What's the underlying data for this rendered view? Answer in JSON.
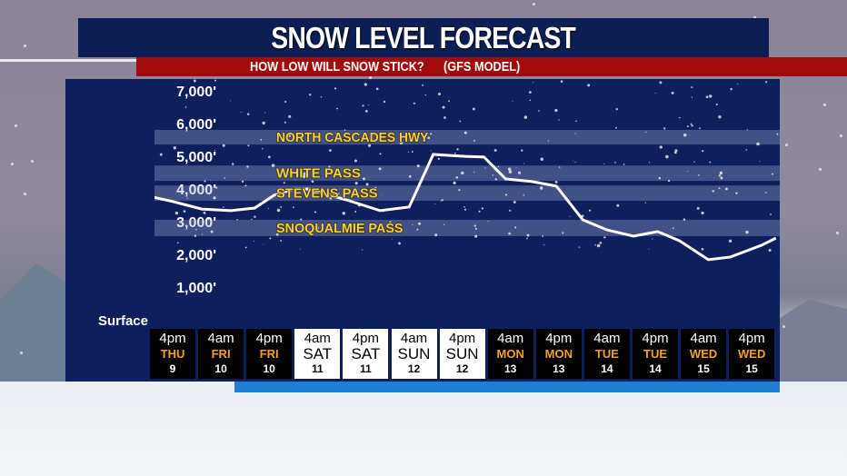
{
  "title": "SNOW LEVEL FORECAST",
  "subtitle": "HOW LOW WILL SNOW STICK?      (GFS MODEL)",
  "colors": {
    "panel": "#0d1f5c",
    "title_bar": "#0c1f55",
    "subtitle_bar": "#a20b0b",
    "band_label": "#f3d14a",
    "weekday_accent": "#f7a21b",
    "line": "#ffffff"
  },
  "chart_data": {
    "type": "line",
    "title": "SNOW LEVEL FORECAST",
    "ylim": [
      0,
      7500
    ],
    "y_ticks": [
      {
        "value": 7000,
        "label": "7,000'"
      },
      {
        "value": 6000,
        "label": "6,000'"
      },
      {
        "value": 5000,
        "label": "5,000'"
      },
      {
        "value": 4000,
        "label": "4,000'"
      },
      {
        "value": 3000,
        "label": "3,000'"
      },
      {
        "value": 2000,
        "label": "2,000'"
      },
      {
        "value": 1000,
        "label": "1,000'"
      },
      {
        "value": 0,
        "label": "Surface"
      }
    ],
    "x_labels": [
      {
        "time": "4pm",
        "day": "THU",
        "date": "9",
        "weekend": false
      },
      {
        "time": "4am",
        "day": "FRI",
        "date": "10",
        "weekend": false
      },
      {
        "time": "4pm",
        "day": "FRI",
        "date": "10",
        "weekend": false
      },
      {
        "time": "4am",
        "day": "SAT",
        "date": "11",
        "weekend": true
      },
      {
        "time": "4pm",
        "day": "SAT",
        "date": "11",
        "weekend": true
      },
      {
        "time": "4am",
        "day": "SUN",
        "date": "12",
        "weekend": true
      },
      {
        "time": "4pm",
        "day": "SUN",
        "date": "12",
        "weekend": true
      },
      {
        "time": "4am",
        "day": "MON",
        "date": "13",
        "weekend": false
      },
      {
        "time": "4pm",
        "day": "MON",
        "date": "13",
        "weekend": false
      },
      {
        "time": "4am",
        "day": "TUE",
        "date": "14",
        "weekend": false
      },
      {
        "time": "4pm",
        "day": "TUE",
        "date": "14",
        "weekend": false
      },
      {
        "time": "4am",
        "day": "WED",
        "date": "15",
        "weekend": false
      },
      {
        "time": "4pm",
        "day": "WED",
        "date": "15",
        "weekend": false
      }
    ],
    "series": [
      {
        "points": [
          [
            -0.4,
            3830
          ],
          [
            0,
            3700
          ],
          [
            0.6,
            3470
          ],
          [
            1.2,
            3420
          ],
          [
            1.7,
            3500
          ],
          [
            2.1,
            3890
          ],
          [
            2.5,
            4080
          ],
          [
            2.85,
            4080
          ],
          [
            3.2,
            3920
          ],
          [
            3.6,
            3750
          ],
          [
            4.3,
            3420
          ],
          [
            4.9,
            3530
          ],
          [
            5.4,
            5140
          ],
          [
            6.05,
            5080
          ],
          [
            6.45,
            5060
          ],
          [
            6.9,
            4390
          ],
          [
            7.45,
            4310
          ],
          [
            7.95,
            4170
          ],
          [
            8.5,
            3140
          ],
          [
            9,
            2830
          ],
          [
            9.55,
            2640
          ],
          [
            10.05,
            2780
          ],
          [
            10.5,
            2500
          ],
          [
            11.1,
            1920
          ],
          [
            11.55,
            2000
          ],
          [
            12.2,
            2360
          ],
          [
            12.5,
            2580
          ]
        ]
      }
    ],
    "bands": [
      {
        "label": "NORTH CASCADES HWY",
        "from": 5440,
        "to": 5890
      },
      {
        "label": "WHITE PASS",
        "from": 4330,
        "to": 4800
      },
      {
        "label": "STEVENS PASS",
        "from": 3720,
        "to": 4190
      },
      {
        "label": "SNOQUALMIE PASS",
        "from": 2640,
        "to": 3140
      }
    ],
    "grid": false
  }
}
